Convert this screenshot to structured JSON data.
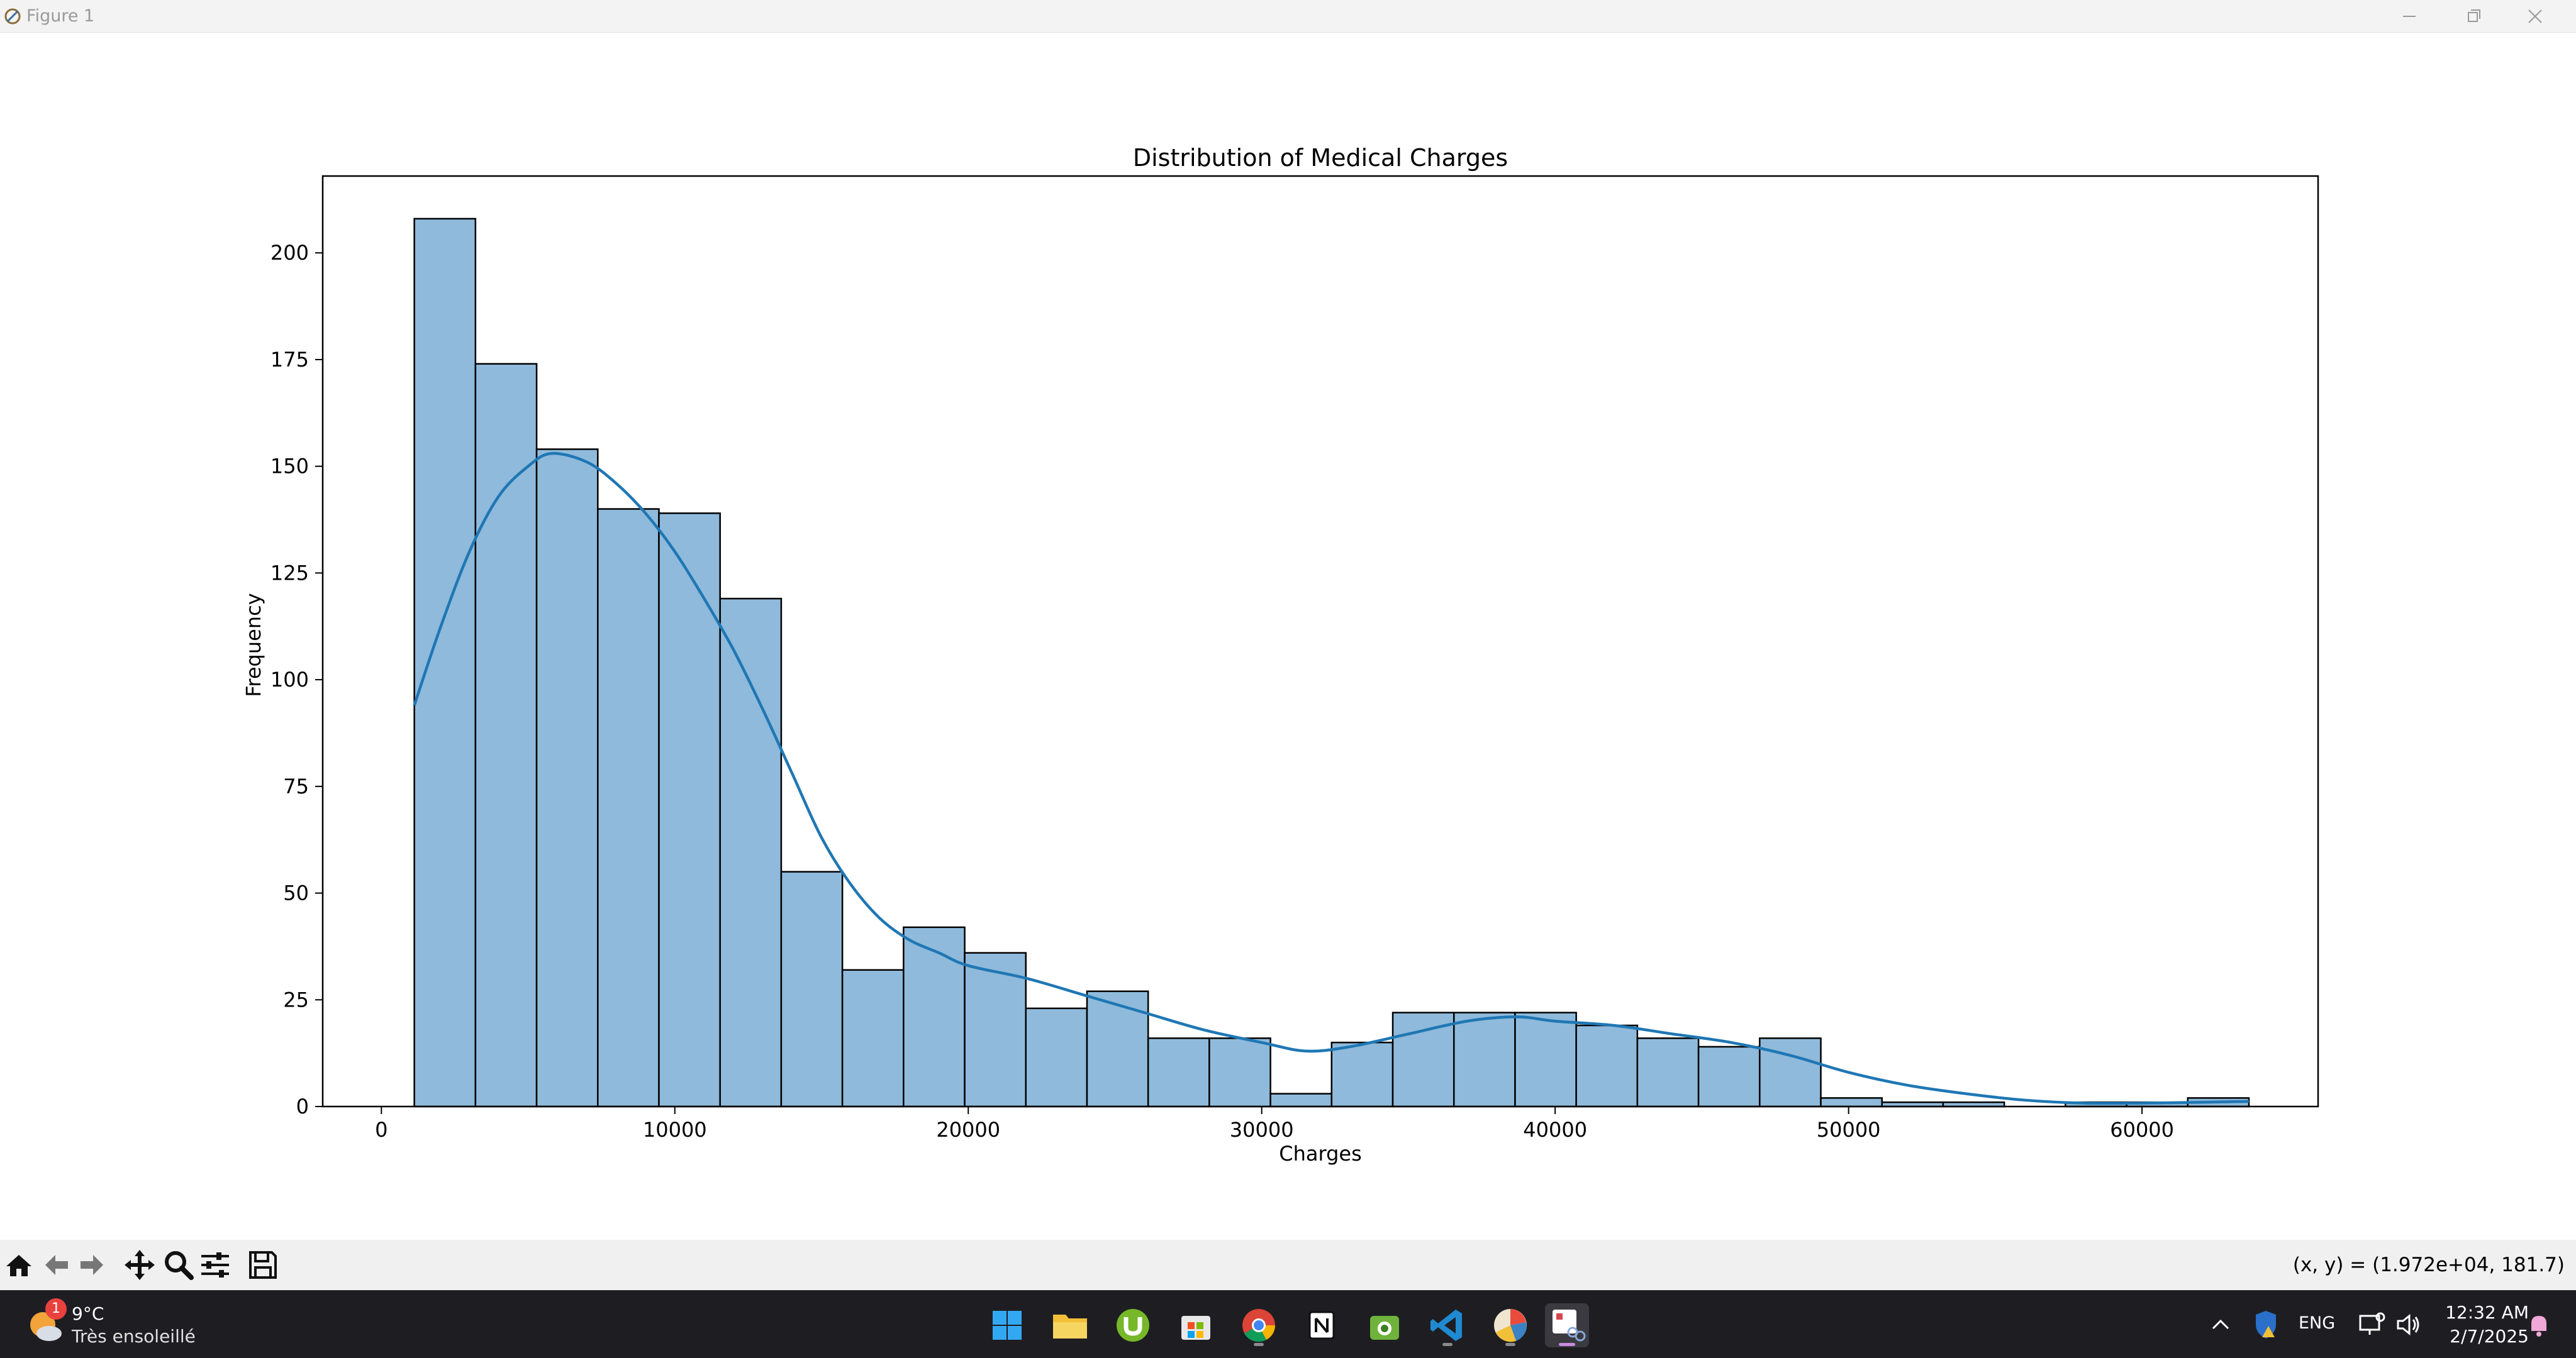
{
  "window": {
    "title": "Figure 1"
  },
  "chart_data": {
    "type": "bar",
    "title": "Distribution of Medical Charges",
    "xlabel": "Charges",
    "ylabel": "Frequency",
    "xlim": [
      -2000,
      66000
    ],
    "ylim": [
      0,
      218
    ],
    "xticks": [
      0,
      10000,
      20000,
      30000,
      40000,
      50000,
      60000
    ],
    "yticks": [
      0,
      25,
      50,
      75,
      100,
      125,
      150,
      175,
      200
    ],
    "bin_edges": [
      1122,
      3206,
      5290,
      7374,
      9458,
      11542,
      13626,
      15710,
      17794,
      19878,
      21962,
      24046,
      26130,
      28214,
      30298,
      32382,
      34466,
      36550,
      38634,
      40718,
      42802,
      44886,
      46970,
      49054,
      51138,
      53222,
      55306,
      57390,
      59474,
      61558,
      63642
    ],
    "counts": [
      208,
      174,
      154,
      140,
      139,
      119,
      55,
      32,
      42,
      36,
      23,
      27,
      16,
      16,
      3,
      15,
      22,
      22,
      22,
      19,
      16,
      14,
      16,
      2,
      1,
      1,
      0,
      1,
      1,
      2
    ],
    "kde": {
      "x": [
        1122,
        2000,
        3000,
        4000,
        5000,
        5800,
        7000,
        8000,
        9000,
        10000,
        11000,
        12000,
        13000,
        14000,
        15000,
        16000,
        17000,
        18000,
        19000,
        20000,
        22000,
        24000,
        26000,
        28000,
        30000,
        31500,
        33000,
        35000,
        37000,
        38700,
        40000,
        42000,
        44000,
        46000,
        48000,
        50000,
        52000,
        54000,
        56000,
        58000,
        60000,
        62000,
        63642
      ],
      "y": [
        94,
        112,
        130,
        143,
        150,
        153,
        151,
        146,
        139,
        130,
        119,
        107,
        93,
        78,
        63,
        52,
        44,
        39,
        36,
        33,
        30,
        26,
        22,
        18,
        15,
        13,
        14,
        17,
        20,
        21,
        20,
        19,
        17,
        15,
        12,
        8,
        5,
        3,
        1.5,
        0.8,
        0.8,
        1,
        1.2
      ]
    },
    "bar_color": "#8fbadb",
    "kde_color": "#1f77b4",
    "grid": false,
    "legend": "none"
  },
  "toolbar": {
    "tools": [
      "home-icon",
      "back-arrow-icon",
      "forward-arrow-icon",
      "pan-icon",
      "zoom-icon",
      "subplots-config-icon",
      "save-icon"
    ],
    "coordinates": "(x, y) = (1.972e+04, 181.7)"
  },
  "taskbar": {
    "weather": {
      "temp": "9°C",
      "desc": "Très ensoleillé",
      "badge": "1"
    },
    "apps": [
      "windows-start-icon",
      "file-explorer-icon",
      "utorrent-icon",
      "microsoft-store-icon",
      "chrome-icon",
      "notion-icon",
      "android-studio-icon",
      "vscode-icon",
      "colors-app-icon",
      "snipping-tool-icon"
    ],
    "language": "ENG",
    "time": "12:32 AM",
    "date": "2/7/2025"
  }
}
